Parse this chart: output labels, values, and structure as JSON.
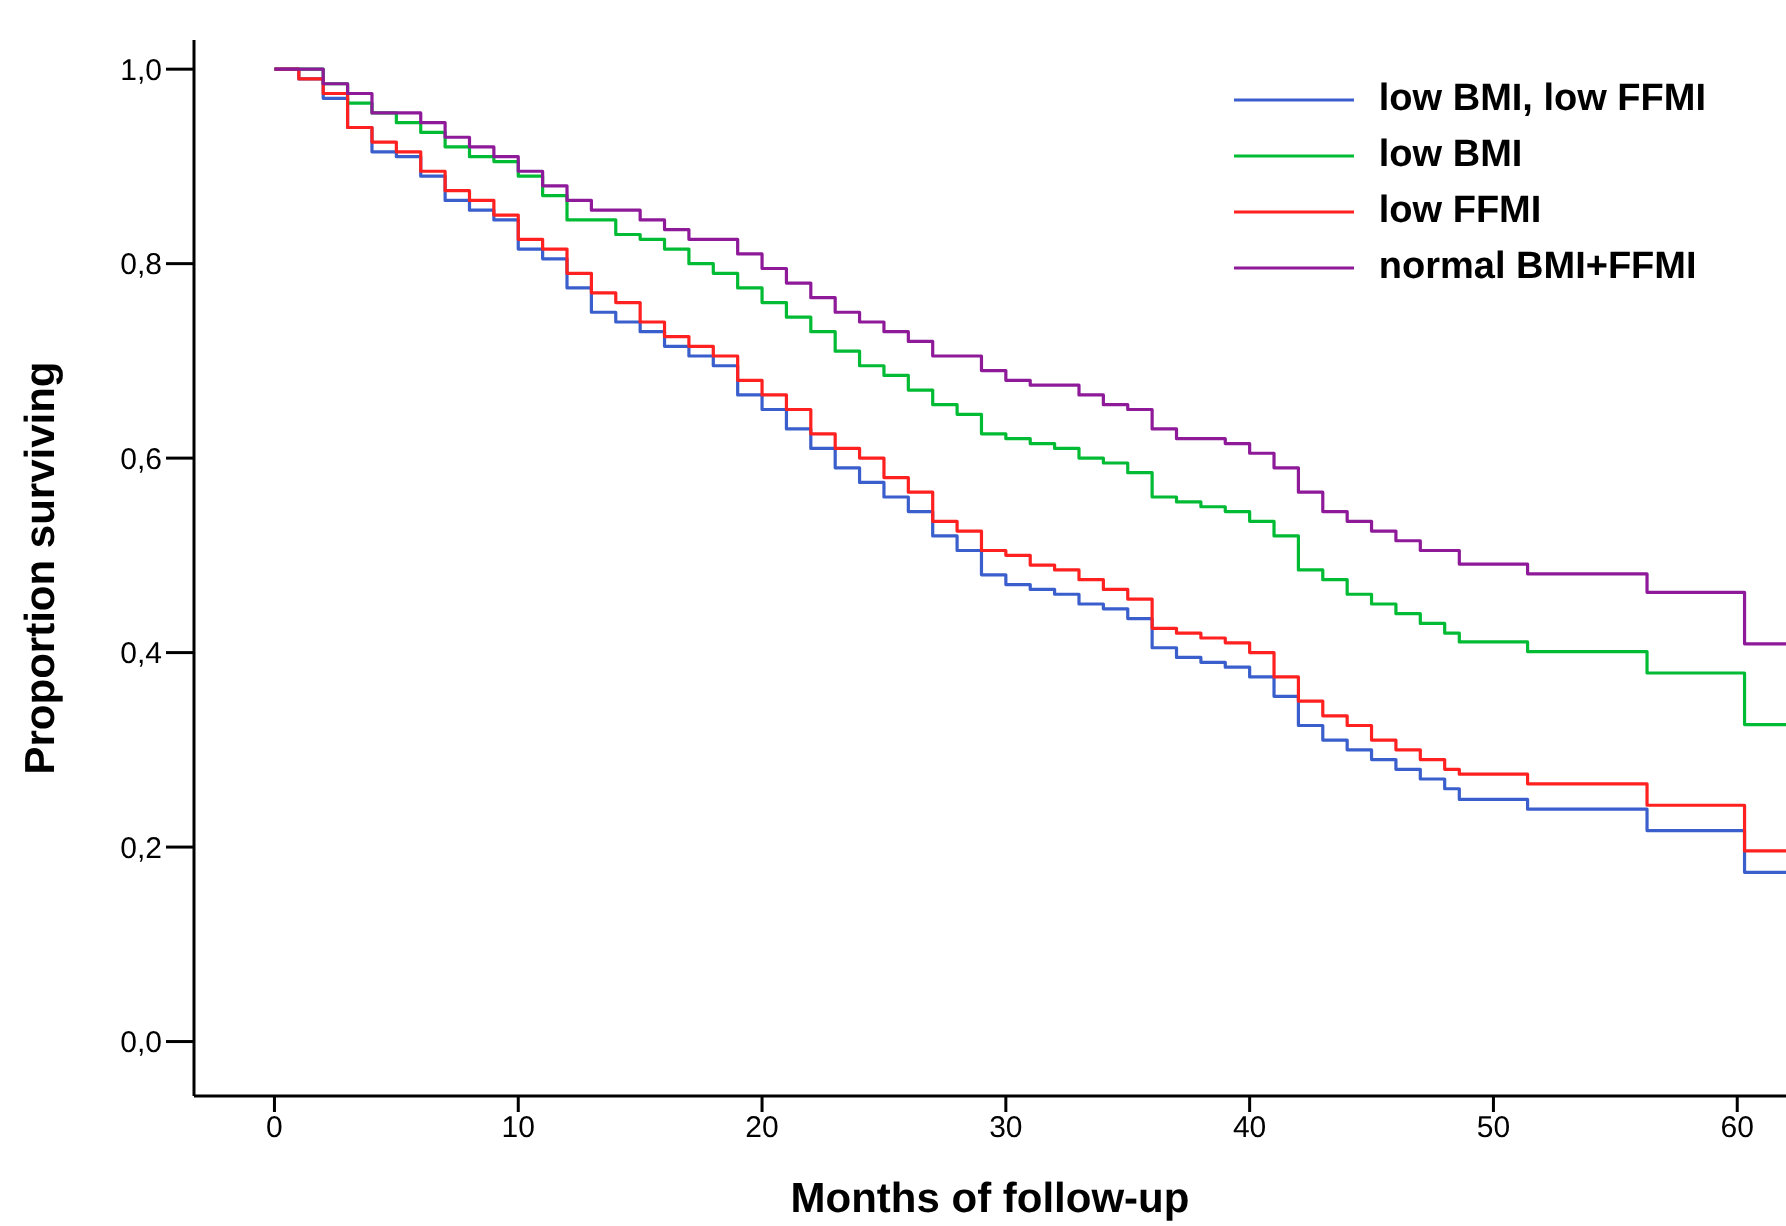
{
  "chart_data": {
    "type": "step",
    "xlabel": "Months of follow-up",
    "ylabel": "Proportion surviving",
    "xlim": [
      -3.3,
      62
    ],
    "xticks": [
      0,
      10,
      20,
      30,
      40,
      50,
      60
    ],
    "ylim": [
      -0.056,
      1.03
    ],
    "yticks": [
      {
        "value": 0,
        "label": "0,0"
      },
      {
        "value": 0.2,
        "label": "0,2"
      },
      {
        "value": 0.4,
        "label": "0,4"
      },
      {
        "value": 0.6,
        "label": "0,6"
      },
      {
        "value": 0.8,
        "label": "0,8"
      },
      {
        "value": 1,
        "label": "1,0"
      }
    ],
    "legend": "top right",
    "marker": "none",
    "line_style": "solid",
    "series": [
      {
        "name": "low BMI, low FFMI",
        "color": "#3a5fcd",
        "x": [
          0,
          1,
          2,
          3,
          4,
          5,
          6,
          7,
          8,
          9,
          10,
          11,
          12,
          13,
          14,
          15,
          16,
          17,
          18,
          19,
          20,
          21,
          22,
          23,
          24,
          25,
          26,
          27,
          28,
          29,
          30,
          31,
          32,
          33,
          34,
          35,
          36,
          37,
          38,
          39,
          40,
          41,
          42,
          43,
          44,
          45,
          46,
          47,
          48,
          48.6,
          51.4,
          56.3,
          60.3,
          62
        ],
        "values": [
          1.0,
          0.99,
          0.97,
          0.94,
          0.915,
          0.91,
          0.89,
          0.865,
          0.855,
          0.845,
          0.815,
          0.805,
          0.775,
          0.75,
          0.74,
          0.73,
          0.715,
          0.705,
          0.695,
          0.665,
          0.65,
          0.63,
          0.61,
          0.59,
          0.575,
          0.56,
          0.545,
          0.52,
          0.505,
          0.48,
          0.47,
          0.465,
          0.46,
          0.45,
          0.445,
          0.435,
          0.405,
          0.395,
          0.39,
          0.385,
          0.375,
          0.355,
          0.325,
          0.31,
          0.3,
          0.29,
          0.28,
          0.27,
          0.26,
          0.249,
          0.239,
          0.217,
          0.174,
          0.174
        ]
      },
      {
        "name": "low BMI",
        "color": "#00bb33",
        "x": [
          0,
          2,
          3,
          4,
          5,
          6,
          7,
          8,
          9,
          10,
          11,
          12,
          14,
          15,
          16,
          17,
          18,
          19,
          20,
          21,
          22,
          23,
          24,
          25,
          26,
          27,
          28,
          29,
          30,
          31,
          32,
          33,
          34,
          35,
          36,
          37,
          38,
          39,
          40,
          41,
          42,
          43,
          44,
          45,
          46,
          47,
          48,
          48.6,
          51.4,
          56.3,
          60.3,
          62
        ],
        "values": [
          1.0,
          0.985,
          0.965,
          0.955,
          0.945,
          0.935,
          0.92,
          0.91,
          0.905,
          0.89,
          0.87,
          0.845,
          0.83,
          0.825,
          0.815,
          0.8,
          0.79,
          0.775,
          0.76,
          0.745,
          0.73,
          0.71,
          0.695,
          0.685,
          0.67,
          0.655,
          0.645,
          0.625,
          0.62,
          0.615,
          0.61,
          0.6,
          0.595,
          0.585,
          0.56,
          0.555,
          0.55,
          0.545,
          0.535,
          0.52,
          0.485,
          0.475,
          0.46,
          0.45,
          0.44,
          0.43,
          0.42,
          0.411,
          0.401,
          0.379,
          0.326,
          0.326
        ]
      },
      {
        "name": "low FFMI",
        "color": "#ff2020",
        "x": [
          0,
          1,
          2,
          3,
          4,
          5,
          6,
          7,
          8,
          9,
          10,
          11,
          12,
          13,
          14,
          15,
          16,
          17,
          18,
          19,
          20,
          21,
          22,
          23,
          24,
          25,
          26,
          27,
          28,
          29,
          30,
          31,
          32,
          33,
          34,
          35,
          36,
          37,
          38,
          39,
          40,
          41,
          42,
          43,
          44,
          45,
          46,
          47,
          48,
          48.6,
          51.4,
          56.3,
          60.3,
          62
        ],
        "values": [
          1.0,
          0.99,
          0.975,
          0.94,
          0.925,
          0.915,
          0.895,
          0.875,
          0.865,
          0.85,
          0.825,
          0.815,
          0.79,
          0.77,
          0.76,
          0.74,
          0.725,
          0.715,
          0.705,
          0.68,
          0.665,
          0.65,
          0.625,
          0.61,
          0.6,
          0.58,
          0.565,
          0.535,
          0.525,
          0.505,
          0.5,
          0.49,
          0.485,
          0.475,
          0.465,
          0.455,
          0.425,
          0.42,
          0.415,
          0.41,
          0.4,
          0.375,
          0.35,
          0.335,
          0.325,
          0.31,
          0.3,
          0.29,
          0.28,
          0.275,
          0.265,
          0.243,
          0.196,
          0.196
        ]
      },
      {
        "name": "normal BMI+FFMI",
        "color": "#8e1a9a",
        "x": [
          0,
          2,
          3,
          4,
          6,
          7,
          8,
          9,
          10,
          11,
          12,
          13,
          15,
          16,
          17,
          19,
          20,
          21,
          22,
          23,
          24,
          25,
          26,
          27,
          29,
          30,
          31,
          33,
          34,
          35,
          36,
          37,
          39,
          40,
          41,
          42,
          43,
          44,
          45,
          46,
          47,
          48.6,
          51.4,
          56.3,
          60.3,
          62
        ],
        "values": [
          1.0,
          0.985,
          0.975,
          0.955,
          0.945,
          0.93,
          0.92,
          0.91,
          0.895,
          0.88,
          0.865,
          0.855,
          0.845,
          0.835,
          0.825,
          0.81,
          0.795,
          0.78,
          0.765,
          0.75,
          0.74,
          0.73,
          0.72,
          0.705,
          0.69,
          0.68,
          0.675,
          0.665,
          0.655,
          0.65,
          0.63,
          0.62,
          0.615,
          0.605,
          0.59,
          0.565,
          0.545,
          0.535,
          0.525,
          0.515,
          0.505,
          0.491,
          0.481,
          0.462,
          0.409,
          0.409
        ]
      }
    ]
  }
}
